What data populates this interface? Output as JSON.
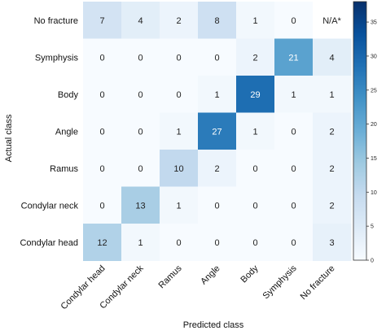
{
  "chart_data": {
    "type": "heatmap",
    "title": "",
    "xlabel": "Predicted class",
    "ylabel": "Actual class",
    "x_categories": [
      "Condylar head",
      "Condylar neck",
      "Ramus",
      "Angle",
      "Body",
      "Symphysis",
      "No fracture"
    ],
    "y_categories": [
      "No fracture",
      "Symphysis",
      "Body",
      "Angle",
      "Ramus",
      "Condylar neck",
      "Condylar head"
    ],
    "values": [
      [
        7,
        4,
        2,
        8,
        1,
        0,
        null
      ],
      [
        0,
        0,
        0,
        0,
        2,
        21,
        4
      ],
      [
        0,
        0,
        0,
        1,
        29,
        1,
        1
      ],
      [
        0,
        0,
        1,
        27,
        1,
        0,
        2
      ],
      [
        0,
        0,
        10,
        2,
        0,
        0,
        2
      ],
      [
        0,
        13,
        1,
        0,
        0,
        0,
        2
      ],
      [
        12,
        1,
        0,
        0,
        0,
        0,
        3
      ]
    ],
    "na_label": "N/A*",
    "colorbar": {
      "range": [
        0,
        38
      ],
      "ticks": [
        0,
        5,
        10,
        15,
        20,
        25,
        30,
        35
      ],
      "colors": [
        "#f7fbff",
        "#deebf7",
        "#c6dbef",
        "#9ecae1",
        "#6baed6",
        "#4292c6",
        "#2171b5",
        "#08519c",
        "#08306b"
      ]
    },
    "grid": false
  }
}
